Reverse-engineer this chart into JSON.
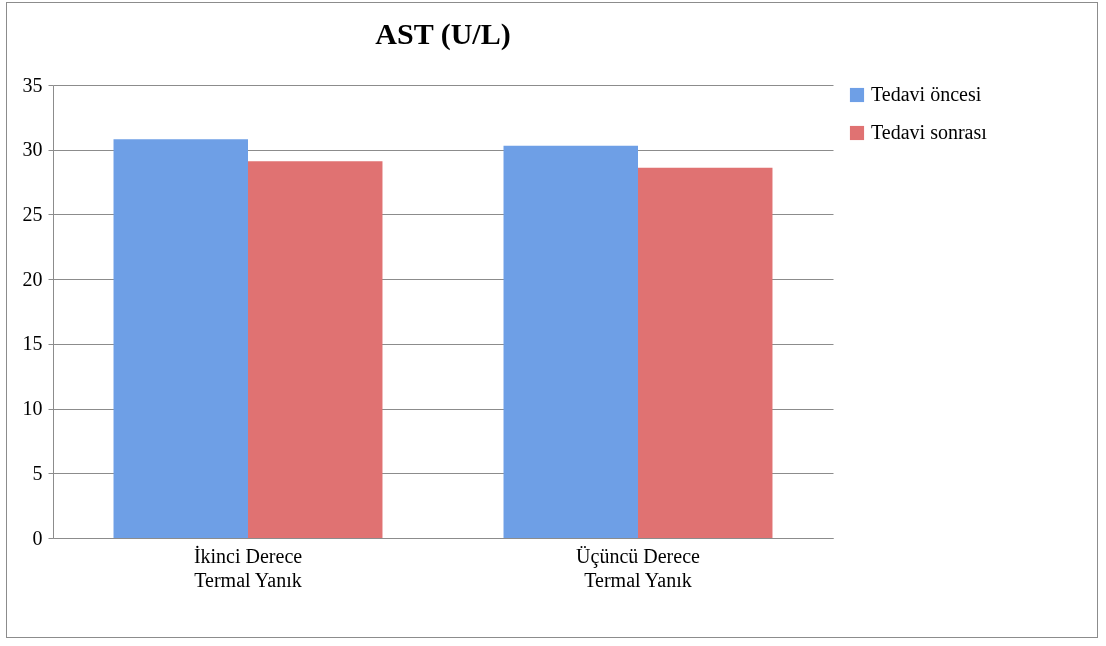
{
  "chart_data": {
    "type": "bar",
    "title": "AST (U/L)",
    "categories": [
      "İkinci Derece\nTermal  Yanık",
      "Üçüncü Derece\nTermal Yanık"
    ],
    "series": [
      {
        "name": "Tedavi öncesi",
        "color": "#6e9fe6",
        "values": [
          30.8,
          30.3
        ]
      },
      {
        "name": "Tedavi sonrası",
        "color": "#e07272",
        "values": [
          29.1,
          28.6
        ]
      }
    ],
    "ylim": [
      0,
      35
    ],
    "yticks": [
      0,
      5,
      10,
      15,
      20,
      25,
      30,
      35
    ],
    "grid": "y",
    "legend": "right"
  }
}
